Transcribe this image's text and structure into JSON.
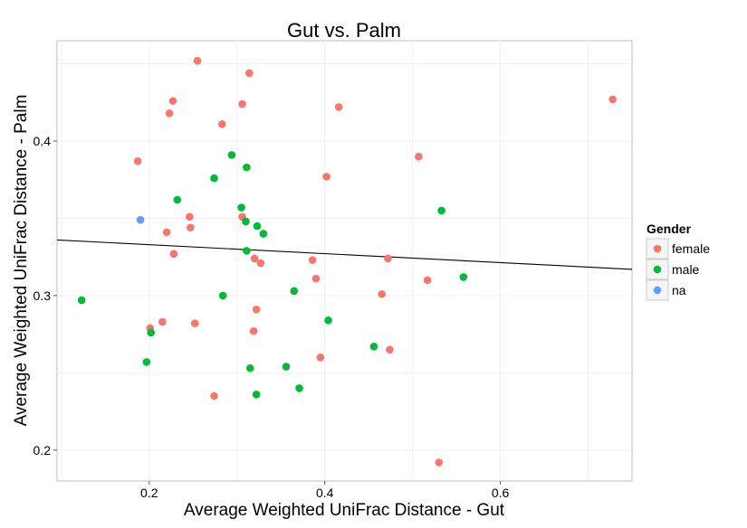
{
  "chart_data": {
    "type": "scatter",
    "title": "Gut vs. Palm",
    "xlabel": "Average Weighted UniFrac Distance - Gut",
    "ylabel": "Average Weighted UniFrac Distance - Palm",
    "xlim": [
      0.095,
      0.75
    ],
    "ylim": [
      0.18,
      0.465
    ],
    "xticks": [
      0.2,
      0.4,
      0.6
    ],
    "yticks": [
      0.2,
      0.3,
      0.4
    ],
    "xtick_labels": [
      "0.2",
      "0.4",
      "0.6"
    ],
    "ytick_labels": [
      "0.2",
      "0.3",
      "0.4"
    ],
    "grid": true,
    "legend": {
      "title": "Gender",
      "position": "right"
    },
    "trendline": {
      "x": [
        0.095,
        0.75
      ],
      "y": [
        0.336,
        0.317
      ],
      "color": "#000000"
    },
    "series": [
      {
        "name": "female",
        "color": "#F8766D",
        "points": [
          {
            "x": 0.255,
            "y": 0.452
          },
          {
            "x": 0.314,
            "y": 0.444
          },
          {
            "x": 0.227,
            "y": 0.426
          },
          {
            "x": 0.223,
            "y": 0.418
          },
          {
            "x": 0.306,
            "y": 0.424
          },
          {
            "x": 0.416,
            "y": 0.422
          },
          {
            "x": 0.283,
            "y": 0.411
          },
          {
            "x": 0.187,
            "y": 0.387
          },
          {
            "x": 0.507,
            "y": 0.39
          },
          {
            "x": 0.402,
            "y": 0.377
          },
          {
            "x": 0.728,
            "y": 0.427
          },
          {
            "x": 0.246,
            "y": 0.351
          },
          {
            "x": 0.306,
            "y": 0.351
          },
          {
            "x": 0.247,
            "y": 0.344
          },
          {
            "x": 0.22,
            "y": 0.341
          },
          {
            "x": 0.228,
            "y": 0.327
          },
          {
            "x": 0.32,
            "y": 0.324
          },
          {
            "x": 0.327,
            "y": 0.321
          },
          {
            "x": 0.386,
            "y": 0.323
          },
          {
            "x": 0.472,
            "y": 0.324
          },
          {
            "x": 0.39,
            "y": 0.311
          },
          {
            "x": 0.517,
            "y": 0.31
          },
          {
            "x": 0.465,
            "y": 0.301
          },
          {
            "x": 0.322,
            "y": 0.291
          },
          {
            "x": 0.215,
            "y": 0.283
          },
          {
            "x": 0.252,
            "y": 0.282
          },
          {
            "x": 0.201,
            "y": 0.279
          },
          {
            "x": 0.319,
            "y": 0.277
          },
          {
            "x": 0.474,
            "y": 0.265
          },
          {
            "x": 0.395,
            "y": 0.26
          },
          {
            "x": 0.274,
            "y": 0.235
          },
          {
            "x": 0.53,
            "y": 0.192
          }
        ]
      },
      {
        "name": "male",
        "color": "#00BA38",
        "points": [
          {
            "x": 0.294,
            "y": 0.391
          },
          {
            "x": 0.311,
            "y": 0.383
          },
          {
            "x": 0.274,
            "y": 0.376
          },
          {
            "x": 0.232,
            "y": 0.362
          },
          {
            "x": 0.305,
            "y": 0.357
          },
          {
            "x": 0.533,
            "y": 0.355
          },
          {
            "x": 0.31,
            "y": 0.348
          },
          {
            "x": 0.323,
            "y": 0.345
          },
          {
            "x": 0.33,
            "y": 0.34
          },
          {
            "x": 0.311,
            "y": 0.329
          },
          {
            "x": 0.558,
            "y": 0.312
          },
          {
            "x": 0.365,
            "y": 0.303
          },
          {
            "x": 0.284,
            "y": 0.3
          },
          {
            "x": 0.123,
            "y": 0.297
          },
          {
            "x": 0.404,
            "y": 0.284
          },
          {
            "x": 0.202,
            "y": 0.276
          },
          {
            "x": 0.456,
            "y": 0.267
          },
          {
            "x": 0.197,
            "y": 0.257
          },
          {
            "x": 0.356,
            "y": 0.254
          },
          {
            "x": 0.315,
            "y": 0.253
          },
          {
            "x": 0.371,
            "y": 0.24
          },
          {
            "x": 0.322,
            "y": 0.236
          }
        ]
      },
      {
        "name": "na",
        "color": "#619CFF",
        "points": [
          {
            "x": 0.19,
            "y": 0.349
          }
        ]
      }
    ]
  }
}
